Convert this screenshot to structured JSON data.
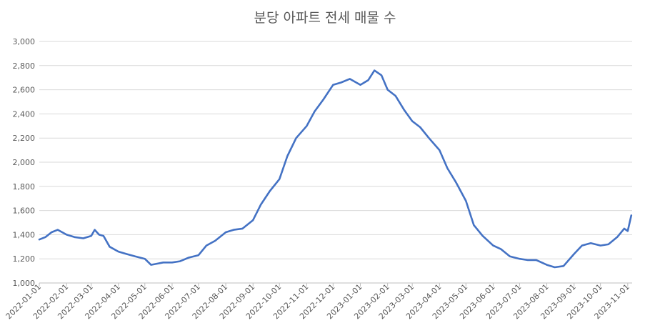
{
  "chart_data": {
    "type": "line",
    "title": "분당 아파트 전세 매물 수",
    "xlabel": "",
    "ylabel": "",
    "ylim": [
      1000,
      3000
    ],
    "y_ticks": [
      "1,000",
      "1,200",
      "1,400",
      "1,600",
      "1,800",
      "2,000",
      "2,200",
      "2,400",
      "2,600",
      "2,800",
      "3,000"
    ],
    "x_tick_labels": [
      "2022-01-01",
      "2022-02-01",
      "2022-03-01",
      "2022-04-01",
      "2022-05-01",
      "2022-06-01",
      "2022-07-01",
      "2022-08-01",
      "2022-09-01",
      "2022-10-01",
      "2022-11-01",
      "2022-12-01",
      "2023-01-01",
      "2023-02-01",
      "2023-03-01",
      "2023-04-01",
      "2023-05-01",
      "2023-06-01",
      "2023-07-01",
      "2023-08-01",
      "2023-09-01",
      "2023-10-01",
      "2023-11-01"
    ],
    "grid": "horizontal",
    "legend": "none",
    "line_color": "#4472C4",
    "series": [
      {
        "x": [
          "2022-01-01",
          "2022-01-08",
          "2022-01-15",
          "2022-01-22",
          "2022-02-01",
          "2022-02-10",
          "2022-02-20",
          "2022-03-01",
          "2022-03-05",
          "2022-03-10",
          "2022-03-15",
          "2022-03-22",
          "2022-04-01",
          "2022-04-10",
          "2022-04-20",
          "2022-05-01",
          "2022-05-08",
          "2022-05-15",
          "2022-05-22",
          "2022-06-01",
          "2022-06-10",
          "2022-06-20",
          "2022-07-01",
          "2022-07-10",
          "2022-07-20",
          "2022-08-01",
          "2022-08-10",
          "2022-08-20",
          "2022-09-01",
          "2022-09-10",
          "2022-09-20",
          "2022-10-01",
          "2022-10-10",
          "2022-10-20",
          "2022-11-01",
          "2022-11-10",
          "2022-11-20",
          "2022-12-01",
          "2022-12-10",
          "2022-12-20",
          "2023-01-01",
          "2023-01-10",
          "2023-01-17",
          "2023-01-25",
          "2023-02-01",
          "2023-02-10",
          "2023-02-20",
          "2023-03-01",
          "2023-03-10",
          "2023-03-20",
          "2023-04-01",
          "2023-04-10",
          "2023-04-20",
          "2023-05-01",
          "2023-05-10",
          "2023-05-20",
          "2023-06-01",
          "2023-06-10",
          "2023-06-20",
          "2023-07-01",
          "2023-07-10",
          "2023-07-20",
          "2023-08-01",
          "2023-08-10",
          "2023-08-20",
          "2023-09-01",
          "2023-09-10",
          "2023-09-20",
          "2023-10-01",
          "2023-10-10",
          "2023-10-20",
          "2023-10-28",
          "2023-11-01",
          "2023-11-05"
        ],
        "values": [
          1360,
          1380,
          1420,
          1440,
          1400,
          1380,
          1370,
          1390,
          1440,
          1400,
          1390,
          1300,
          1260,
          1240,
          1220,
          1200,
          1150,
          1160,
          1170,
          1170,
          1180,
          1210,
          1230,
          1310,
          1350,
          1420,
          1440,
          1450,
          1520,
          1650,
          1760,
          1860,
          2050,
          2200,
          2300,
          2420,
          2520,
          2640,
          2660,
          2690,
          2640,
          2680,
          2760,
          2720,
          2600,
          2550,
          2430,
          2340,
          2290,
          2200,
          2100,
          1950,
          1830,
          1680,
          1480,
          1390,
          1310,
          1280,
          1220,
          1200,
          1190,
          1190,
          1150,
          1130,
          1140,
          1240,
          1310,
          1330,
          1310,
          1320,
          1380,
          1450,
          1430,
          1560
        ]
      }
    ]
  }
}
